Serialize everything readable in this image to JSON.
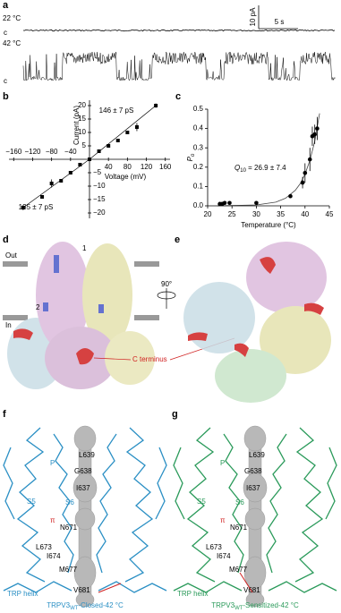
{
  "panel_a": {
    "label": "a",
    "trace_top": {
      "temp": "22 °C",
      "closed": "c"
    },
    "trace_bottom": {
      "temp": "42 °C",
      "closed": "c"
    },
    "scale_bar": {
      "current": "10 pA",
      "time": "5 s"
    }
  },
  "chart_data": [
    {
      "type": "scatter",
      "label": "b",
      "x_label": "Voltage (mV)",
      "y_label": "Current (pA)",
      "annotations": [
        "146 ± 7 pS",
        "135 ± 7 pS"
      ],
      "x": [
        -140,
        -100,
        -80,
        -60,
        -40,
        -20,
        0,
        20,
        40,
        60,
        80,
        100,
        140
      ],
      "series": [
        {
          "color": "#000000",
          "values": [
            -18,
            -14,
            -9,
            -8,
            -5,
            -2,
            0,
            3,
            5,
            7,
            10,
            12,
            20
          ],
          "errors": [
            1,
            0.5,
            1.5,
            0.5,
            0.5,
            0.5,
            0,
            0.5,
            0.5,
            0.5,
            0.5,
            1.5,
            0.8
          ]
        }
      ],
      "xlim": [
        -170,
        170
      ],
      "xticks": [
        {
          "value": -160,
          "label": "−160"
        },
        {
          "value": -120,
          "label": "−120"
        },
        {
          "value": -80,
          "label": "−80"
        },
        {
          "value": -40,
          "label": "−40"
        },
        40,
        80,
        120,
        160
      ],
      "ylim": [
        -22,
        22
      ],
      "yticks": [
        20,
        15,
        10,
        5,
        {
          "value": -5,
          "label": "−5"
        },
        {
          "value": -10,
          "label": "−10"
        },
        {
          "value": -15,
          "label": "−15"
        },
        {
          "value": -20,
          "label": "−20"
        }
      ]
    },
    {
      "type": "scatter",
      "label": "c",
      "x_label": "Temperature (°C)",
      "y_label": {
        "main": "P",
        "sub": "o"
      },
      "annotation": {
        "main": "Q",
        "sub": "10",
        "rest": " = 26.9 ± 7.4"
      },
      "x": [
        22.5,
        23,
        23.5,
        24.5,
        30,
        37,
        39.5,
        40,
        41,
        41.5,
        42,
        42.5
      ],
      "series": [
        {
          "color": "#000000",
          "values": [
            0.01,
            0.01,
            0.015,
            0.015,
            0.015,
            0.05,
            0.12,
            0.17,
            0.24,
            0.36,
            0.37,
            0.4
          ],
          "errors": [
            null,
            null,
            null,
            null,
            null,
            0.01,
            0.03,
            0.05,
            0.06,
            0.05,
            0.05,
            0.06
          ]
        }
      ],
      "xlim": [
        20,
        45
      ],
      "xticks": [
        20,
        25,
        30,
        35,
        40,
        45
      ],
      "ylim": [
        0,
        0.5
      ],
      "yticks": [
        {
          "value": 0,
          "label": "0.0"
        },
        0.1,
        0.2,
        0.3,
        0.4,
        0.5
      ]
    }
  ],
  "panel_d": {
    "label": "d",
    "out": "Out",
    "in": "In",
    "site_1": "1",
    "site_2": "2",
    "c_terminus": "C terminus"
  },
  "panel_e": {
    "label": "e",
    "rotation": "90°"
  },
  "panel_f": {
    "label": "f",
    "residues": [
      "L639",
      "G638",
      "I637",
      "N671",
      "L673",
      "I674",
      "M677",
      "V681"
    ],
    "p": "P",
    "s5": "S5",
    "s6": "S6",
    "pi": "π",
    "trp": "TRP helix",
    "caption": {
      "main": "TRPV3",
      "sub": "WT",
      "rest": "-Closed-42 °C"
    }
  },
  "panel_g": {
    "label": "g",
    "residues": [
      "L639",
      "G638",
      "I637",
      "N671",
      "L673",
      "I674",
      "M677",
      "V681"
    ],
    "p": "P",
    "s5": "S5",
    "s6": "S6",
    "pi": "π",
    "trp": "TRP helix",
    "caption": {
      "main": "TRPV3",
      "sub": "WT",
      "rest": "-Sensitized-42 °C"
    }
  }
}
